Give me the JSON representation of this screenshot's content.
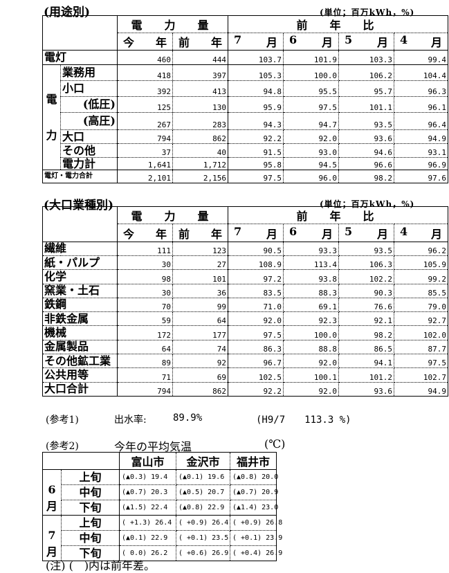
{
  "unit_label": "(単位；百万kWh，%)",
  "headers": {
    "volume": "電　力　量",
    "ratio": "前　年　比",
    "this_year": [
      "今",
      "年"
    ],
    "last_year": [
      "前",
      "年"
    ],
    "months": [
      [
        "7",
        "月"
      ],
      [
        "6",
        "月"
      ],
      [
        "5",
        "月"
      ],
      [
        "4",
        "月"
      ]
    ]
  },
  "by_use": {
    "title": "(用途別)",
    "group_label": [
      "電",
      "力"
    ],
    "rows": [
      {
        "label": "電灯",
        "values": [
          "460",
          "444",
          "103.7",
          "101.9",
          "103.3",
          "99.4"
        ]
      },
      {
        "label": "業務用",
        "values": [
          "418",
          "397",
          "105.3",
          "100.0",
          "106.2",
          "104.4"
        ]
      },
      {
        "label": "小口",
        "values": [
          "392",
          "413",
          "94.8",
          "95.5",
          "95.7",
          "96.3"
        ]
      },
      {
        "label": "(低圧)",
        "values": [
          "125",
          "130",
          "95.9",
          "97.5",
          "101.1",
          "96.1"
        ]
      },
      {
        "label": "(高圧)",
        "values": [
          "267",
          "283",
          "94.3",
          "94.7",
          "93.5",
          "96.4"
        ]
      },
      {
        "label": "大口",
        "values": [
          "794",
          "862",
          "92.2",
          "92.0",
          "93.6",
          "94.9"
        ]
      },
      {
        "label": "その他",
        "values": [
          "37",
          "40",
          "91.5",
          "93.0",
          "94.6",
          "93.1"
        ]
      },
      {
        "label": "電力計",
        "values": [
          "1,641",
          "1,712",
          "95.8",
          "94.5",
          "96.6",
          "96.9"
        ]
      },
      {
        "label": "電灯・電力合計",
        "values": [
          "2,101",
          "2,156",
          "97.5",
          "96.0",
          "98.2",
          "97.6"
        ]
      }
    ]
  },
  "by_industry": {
    "title": "(大口業種別)",
    "rows": [
      {
        "label": "繊維",
        "values": [
          "111",
          "123",
          "90.5",
          "93.3",
          "93.5",
          "96.2"
        ]
      },
      {
        "label": "紙・パルプ",
        "values": [
          "30",
          "27",
          "108.9",
          "113.4",
          "106.3",
          "105.9"
        ]
      },
      {
        "label": "化学",
        "values": [
          "98",
          "101",
          "97.2",
          "93.8",
          "102.2",
          "99.2"
        ]
      },
      {
        "label": "窯業・土石",
        "values": [
          "30",
          "36",
          "83.5",
          "88.3",
          "90.3",
          "85.5"
        ]
      },
      {
        "label": "鉄鋼",
        "values": [
          "70",
          "99",
          "71.0",
          "69.1",
          "76.6",
          "79.0"
        ]
      },
      {
        "label": "非鉄金属",
        "values": [
          "59",
          "64",
          "92.0",
          "92.3",
          "92.1",
          "92.7"
        ]
      },
      {
        "label": "機械",
        "values": [
          "172",
          "177",
          "97.5",
          "100.0",
          "98.2",
          "102.0"
        ]
      },
      {
        "label": "金属製品",
        "values": [
          "64",
          "74",
          "86.3",
          "88.8",
          "86.5",
          "87.7"
        ]
      },
      {
        "label": "その他鉱工業",
        "values": [
          "89",
          "92",
          "96.7",
          "92.0",
          "94.1",
          "97.5"
        ]
      },
      {
        "label": "公共用等",
        "values": [
          "71",
          "69",
          "102.5",
          "100.1",
          "101.2",
          "102.7"
        ]
      },
      {
        "label": "大口合計",
        "values": [
          "794",
          "862",
          "92.2",
          "92.0",
          "93.6",
          "94.9"
        ]
      }
    ]
  },
  "ref1": {
    "label": "(参考1)",
    "name": "出水率:",
    "value": "89.9%",
    "compare": "(H9/7　　113.3 %)"
  },
  "ref2": {
    "label": "(参考2)",
    "name": "今年の平均気温",
    "unit": "(℃)",
    "cities": [
      "富山市",
      "金沢市",
      "福井市"
    ],
    "months": [
      {
        "month": [
          "6",
          "月"
        ],
        "periods": [
          {
            "label": "上旬",
            "values": [
              "(▲0.3) 19.4",
              "(▲0.1) 19.6",
              "(▲0.8) 20.0"
            ]
          },
          {
            "label": "中旬",
            "values": [
              "(▲0.7) 20.3",
              "(▲0.5) 20.7",
              "(▲0.7) 20.9"
            ]
          },
          {
            "label": "下旬",
            "values": [
              "(▲1.5) 22.4",
              "(▲0.8) 22.9",
              "(▲1.4) 23.0"
            ]
          }
        ]
      },
      {
        "month": [
          "7",
          "月"
        ],
        "periods": [
          {
            "label": "上旬",
            "values": [
              "( +1.3) 26.4",
              "( +0.9) 26.4",
              "( +0.9) 26.8"
            ]
          },
          {
            "label": "中旬",
            "values": [
              "(▲0.1) 22.9",
              "( +0.1) 23.5",
              "( +0.1) 23.9"
            ]
          },
          {
            "label": "下旬",
            "values": [
              "(  0.0) 26.2",
              "( +0.6) 26.9",
              "( +0.4) 26.9"
            ]
          }
        ]
      }
    ],
    "note": "(注) (　)内は前年差。"
  }
}
